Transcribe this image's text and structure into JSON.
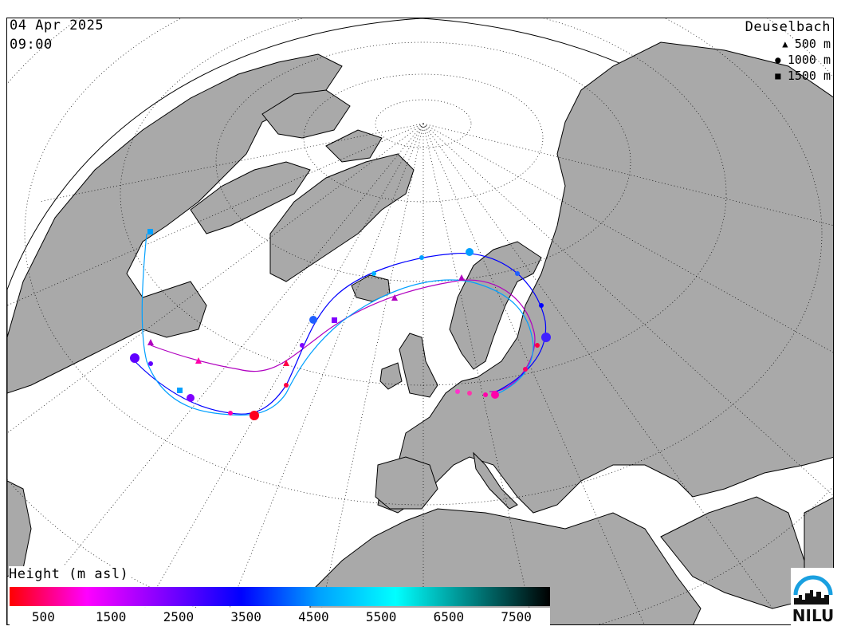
{
  "header": {
    "date": "04 Apr 2025",
    "time": "09:00"
  },
  "legend": {
    "station": "Deuselbach",
    "levels": [
      {
        "label": "500 m",
        "symbol": "triangle",
        "symbol_char": "▲"
      },
      {
        "label": "1000 m",
        "symbol": "circle",
        "symbol_char": "●"
      },
      {
        "label": "1500 m",
        "symbol": "square",
        "symbol_char": "■"
      }
    ]
  },
  "colorbar": {
    "title": "Height (m asl)",
    "ticks": [
      "500",
      "1500",
      "2500",
      "3500",
      "4500",
      "5500",
      "6500",
      "7500"
    ],
    "colors": [
      "#ff0000",
      "#ff00ff",
      "#8000ff",
      "#0000ff",
      "#00a0ff",
      "#00ffff",
      "#008080",
      "#000000"
    ]
  },
  "colors": {
    "land": "#a9a9a9",
    "ocean": "#ffffff",
    "border": "#000000",
    "grid": "#000000"
  },
  "logo": {
    "text": "NILU"
  }
}
